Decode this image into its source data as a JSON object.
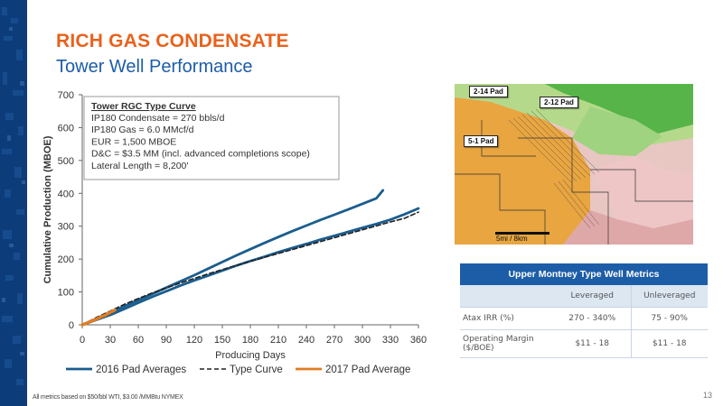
{
  "slide": {
    "title": "RICH GAS CONDENSATE",
    "subtitle": "Tower Well Performance",
    "footnote": "All metrics based on $50/bbl WTI, $3.00 /MMBtu NYMEX",
    "page_number": "13"
  },
  "colors": {
    "sidebar": "#0d3c7a",
    "title": "#e8621c",
    "subtitle": "#1d5da8",
    "series_2016": "#1a5d8e",
    "series_type": "#222222",
    "series_2017": "#e07c24",
    "table_header": "#1d5da8"
  },
  "chart_data": {
    "type": "line",
    "xlabel": "Producing Days",
    "ylabel": "Cumulative Production (MBOE)",
    "xlim": [
      0,
      360
    ],
    "ylim": [
      0,
      700
    ],
    "xticks": [
      0,
      30,
      60,
      90,
      120,
      150,
      180,
      210,
      240,
      270,
      300,
      330,
      360
    ],
    "yticks": [
      0,
      100,
      200,
      300,
      400,
      500,
      600,
      700
    ],
    "grid": false,
    "legend": "bottom",
    "annotation": {
      "title": "Tower RGC Type Curve",
      "lines": [
        "IP180 Condensate = 270 bbls/d",
        "IP180 Gas = 6.0 MMcf/d",
        "EUR = 1,500 MBOE",
        "D&C = $3.5 MM (incl. advanced completions scope)",
        "Lateral Length = 8,200'"
      ]
    },
    "series": [
      {
        "name": "2016 Pad Averages",
        "style": "solid",
        "x": [
          0,
          10,
          20,
          30,
          45,
          60,
          75,
          90,
          105,
          120,
          135,
          150,
          165,
          180,
          195,
          210,
          225,
          240,
          255,
          270,
          285,
          300,
          315,
          322
        ],
        "y": [
          0,
          12,
          24,
          37,
          56,
          75,
          94,
          113,
          132,
          151,
          171,
          191,
          211,
          230,
          249,
          267,
          285,
          302,
          319,
          335,
          351,
          368,
          385,
          409
        ]
      },
      {
        "name": "2016 Pad Averages",
        "style": "solid",
        "x": [
          0,
          15,
          30,
          45,
          60,
          75,
          90,
          105,
          120,
          135,
          150,
          165,
          180,
          195,
          210,
          225,
          240,
          255,
          270,
          285,
          300,
          315,
          330,
          345,
          360
        ],
        "y": [
          0,
          15,
          30,
          48,
          67,
          85,
          102,
          119,
          135,
          150,
          165,
          180,
          194,
          207,
          221,
          234,
          246,
          259,
          271,
          283,
          295,
          307,
          320,
          336,
          354
        ]
      },
      {
        "name": "Type Curve",
        "style": "dashed",
        "x": [
          0,
          15,
          30,
          45,
          60,
          75,
          90,
          105,
          120,
          135,
          150,
          165,
          180,
          195,
          210,
          225,
          240,
          255,
          270,
          285,
          300,
          315,
          330,
          345,
          360
        ],
        "y": [
          0,
          22,
          42,
          62,
          80,
          97,
          112,
          127,
          141,
          155,
          168,
          181,
          193,
          205,
          217,
          229,
          241,
          253,
          265,
          277,
          289,
          301,
          313,
          324,
          343
        ]
      },
      {
        "name": "2017 Pad Average",
        "style": "solid",
        "x": [
          0,
          5,
          10,
          15,
          20,
          25,
          30,
          35
        ],
        "y": [
          0,
          5,
          11,
          17,
          24,
          30,
          38,
          45
        ]
      }
    ]
  },
  "map": {
    "callouts": [
      "2-14 Pad",
      "2-12 Pad",
      "5-1 Pad"
    ],
    "scale_label": "5mi / 8km"
  },
  "metrics_table": {
    "title": "Upper Montney Type Well Metrics",
    "columns": [
      "",
      "Leveraged",
      "Unleveraged"
    ],
    "rows": [
      {
        "label": "Atax IRR (%)",
        "leveraged": "270 - 340%",
        "unleveraged": "75 - 90%"
      },
      {
        "label": "Operating Margin ($/BOE)",
        "leveraged": "$11 - 18",
        "unleveraged": "$11 - 18"
      }
    ]
  }
}
